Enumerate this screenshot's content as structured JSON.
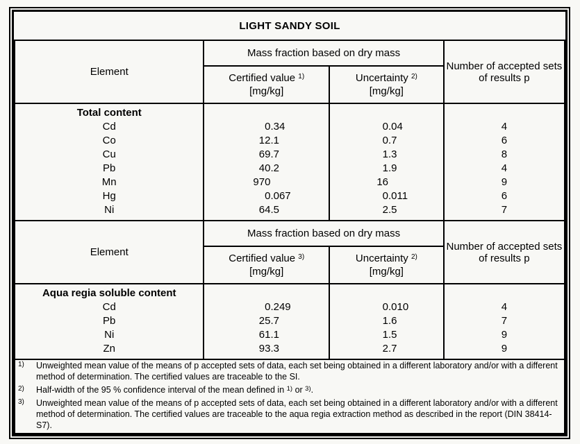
{
  "colors": {
    "background": "#f8f8f5",
    "border": "#000000",
    "text": "#000000"
  },
  "table": {
    "title": "LIGHT SANDY SOIL",
    "sections": [
      {
        "header": {
          "element_label": "Element",
          "mass_fraction_label": "Mass fraction based on dry mass",
          "certified_label": "Certified value",
          "certified_sup": "1)",
          "certified_unit": "[mg/kg]",
          "uncertainty_label": "Uncertainty",
          "uncertainty_sup": "2)",
          "uncertainty_unit": "[mg/kg]",
          "accepted_label": "Number of accepted sets of results p"
        },
        "group_label": "Total content",
        "rows": [
          {
            "element": "Cd",
            "certified": "0.34",
            "uncertainty": "0.04",
            "p": "4"
          },
          {
            "element": "Co",
            "certified": "12.1",
            "uncertainty": "0.7",
            "p": "6"
          },
          {
            "element": "Cu",
            "certified": "69.7",
            "uncertainty": "1.3",
            "p": "8"
          },
          {
            "element": "Pb",
            "certified": "40.2",
            "uncertainty": "1.9",
            "p": "4"
          },
          {
            "element": "Mn",
            "certified": "970",
            "uncertainty": "16",
            "p": "9"
          },
          {
            "element": "Hg",
            "certified": "0.067",
            "uncertainty": "0.011",
            "p": "6"
          },
          {
            "element": "Ni",
            "certified": "64.5",
            "uncertainty": "2.5",
            "p": "7"
          }
        ]
      },
      {
        "header": {
          "element_label": "Element",
          "mass_fraction_label": "Mass fraction based on dry mass",
          "certified_label": "Certified value",
          "certified_sup": "3)",
          "certified_unit": "[mg/kg]",
          "uncertainty_label": "Uncertainty",
          "uncertainty_sup": "2)",
          "uncertainty_unit": "[mg/kg]",
          "accepted_label": "Number of accepted sets of results p"
        },
        "group_label": "Aqua regia soluble content",
        "rows": [
          {
            "element": "Cd",
            "certified": "0.249",
            "uncertainty": "0.010",
            "p": "4"
          },
          {
            "element": "Pb",
            "certified": "25.7",
            "uncertainty": "1.6",
            "p": "7"
          },
          {
            "element": "Ni",
            "certified": "61.1",
            "uncertainty": "1.5",
            "p": "9"
          },
          {
            "element": "Zn",
            "certified": "93.3",
            "uncertainty": "2.7",
            "p": "9"
          }
        ]
      }
    ],
    "footnotes": [
      {
        "marker": "1)",
        "text": "Unweighted mean value of the means of p accepted sets of data, each set being obtained in a different laboratory and/or with a different method of determination. The certified values are traceable to the SI."
      },
      {
        "marker": "2)",
        "text": [
          {
            "t": "Half-width of the 95 % confidence interval of the mean defined in "
          },
          {
            "sup": "1)"
          },
          {
            "t": " or "
          },
          {
            "sup": "3)"
          },
          {
            "t": "."
          }
        ]
      },
      {
        "marker": "3)",
        "text": "Unweighted mean value of the means of p accepted sets of data, each set being obtained in a different laboratory and/or with a different method of determination. The certified values are traceable to the aqua regia extraction method as described in the report (DIN 38414-S7)."
      }
    ]
  }
}
